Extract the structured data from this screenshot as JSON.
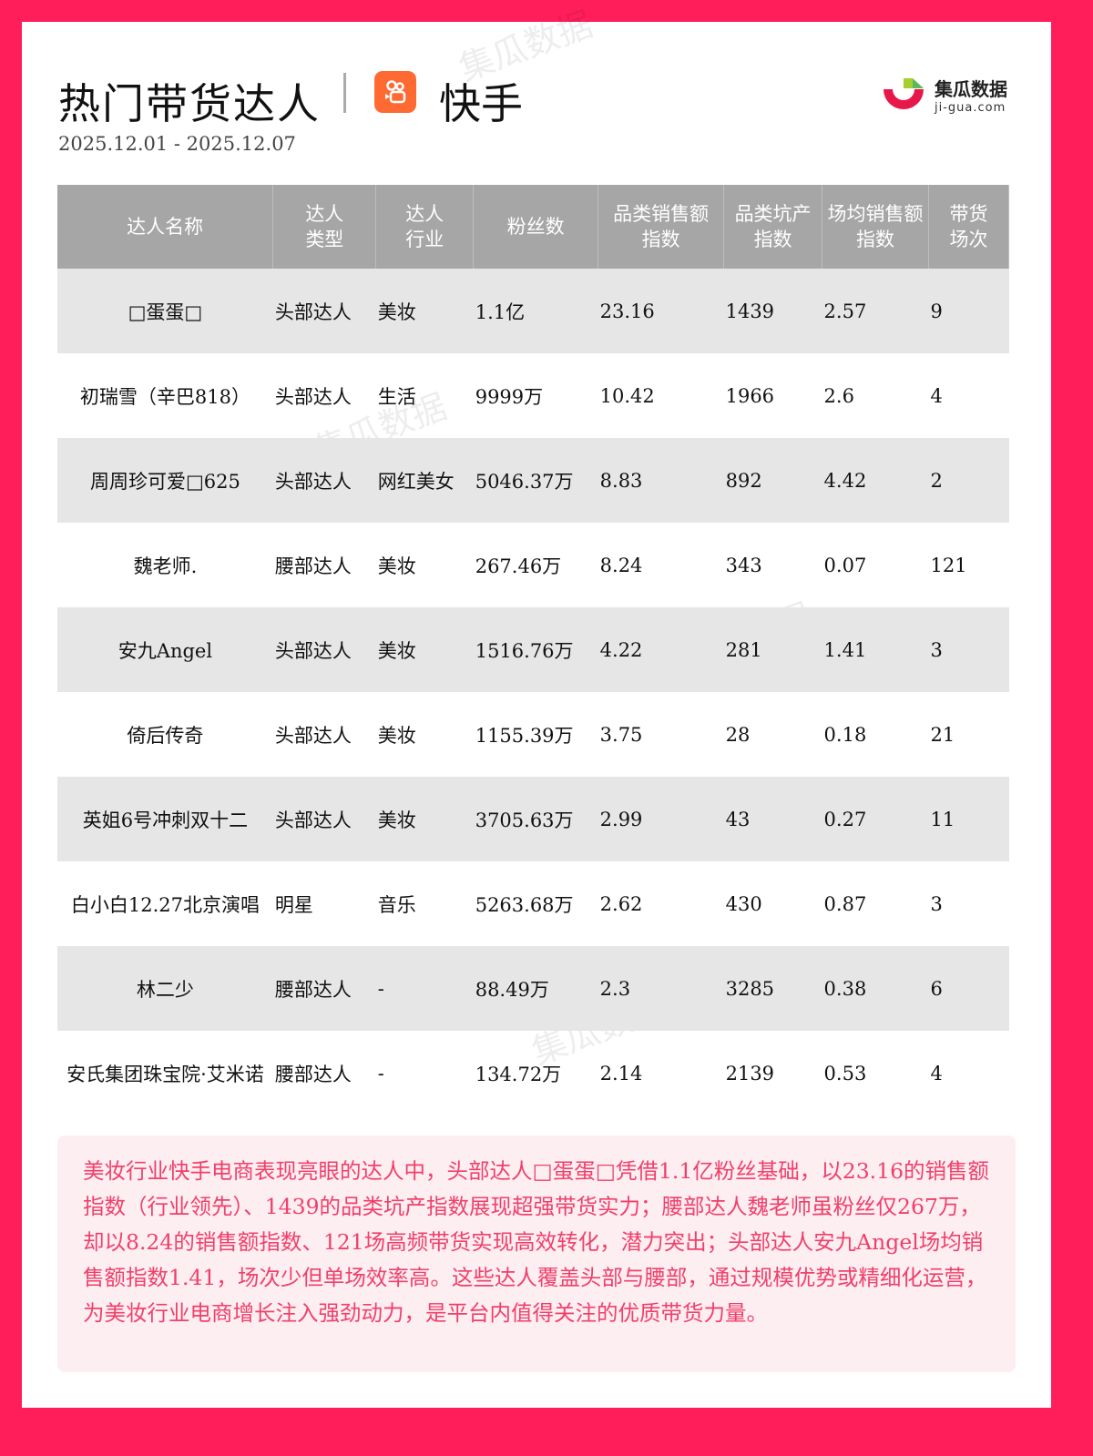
{
  "header": {
    "title": "热门带货达人",
    "platform": "快手",
    "platform_icon": "kuaishou-logo-icon",
    "date_range": "2025.12.01 - 2025.12.07",
    "brand_name": "集瓜数据",
    "brand_domain": "ji-gua.com"
  },
  "colors": {
    "border": "#ff1e5a",
    "header_bg": "#a6a6a6",
    "stripe": "#e6e6e6",
    "summary_text": "#f0406a",
    "summary_bg": "#fdeef2",
    "kuaishou": "#ff6a33"
  },
  "table": {
    "columns": [
      [
        "达人名称"
      ],
      [
        "达人",
        "类型"
      ],
      [
        "达人",
        "行业"
      ],
      [
        "粉丝数"
      ],
      [
        "品类销售额",
        "指数"
      ],
      [
        "品类坑产",
        "指数"
      ],
      [
        "场均销售额",
        "指数"
      ],
      [
        "带货",
        "场次"
      ]
    ],
    "rows": [
      [
        "□蛋蛋□",
        "头部达人",
        "美妆",
        "1.1亿",
        "23.16",
        "1439",
        "2.57",
        "9"
      ],
      [
        "初瑞雪（辛巴818）",
        "头部达人",
        "生活",
        "9999万",
        "10.42",
        "1966",
        "2.6",
        "4"
      ],
      [
        "周周珍可爱□625",
        "头部达人",
        "网红美女",
        "5046.37万",
        "8.83",
        "892",
        "4.42",
        "2"
      ],
      [
        "魏老师.",
        "腰部达人",
        "美妆",
        "267.46万",
        "8.24",
        "343",
        "0.07",
        "121"
      ],
      [
        "安九Angel",
        "头部达人",
        "美妆",
        "1516.76万",
        "4.22",
        "281",
        "1.41",
        "3"
      ],
      [
        "倚后传奇",
        "头部达人",
        "美妆",
        "1155.39万",
        "3.75",
        "28",
        "0.18",
        "21"
      ],
      [
        "英姐6号冲刺双十二",
        "头部达人",
        "美妆",
        "3705.63万",
        "2.99",
        "43",
        "0.27",
        "11"
      ],
      [
        "白小白12.27北京演唱",
        "明星",
        "音乐",
        "5263.68万",
        "2.62",
        "430",
        "0.87",
        "3"
      ],
      [
        "林二少",
        "腰部达人",
        "-",
        "88.49万",
        "2.3",
        "3285",
        "0.38",
        "6"
      ],
      [
        "安氏集团珠宝院·艾米诺",
        "腰部达人",
        "-",
        "134.72万",
        "2.14",
        "2139",
        "0.53",
        "4"
      ]
    ]
  },
  "summary": "美妆行业快手电商表现亮眼的达人中，头部达人□蛋蛋□凭借1.1亿粉丝基础，以23.16的销售额指数（行业领先）、1439的品类坑产指数展现超强带货实力；腰部达人魏老师虽粉丝仅267万，却以8.24的销售额指数、121场高频带货实现高效转化，潜力突出；头部达人安九Angel场均销售额指数1.41，场次少但单场效率高。这些达人覆盖头部与腰部，通过规模优势或精细化运营，为美妆行业电商增长注入强劲动力，是平台内值得关注的优质带货力量。"
}
